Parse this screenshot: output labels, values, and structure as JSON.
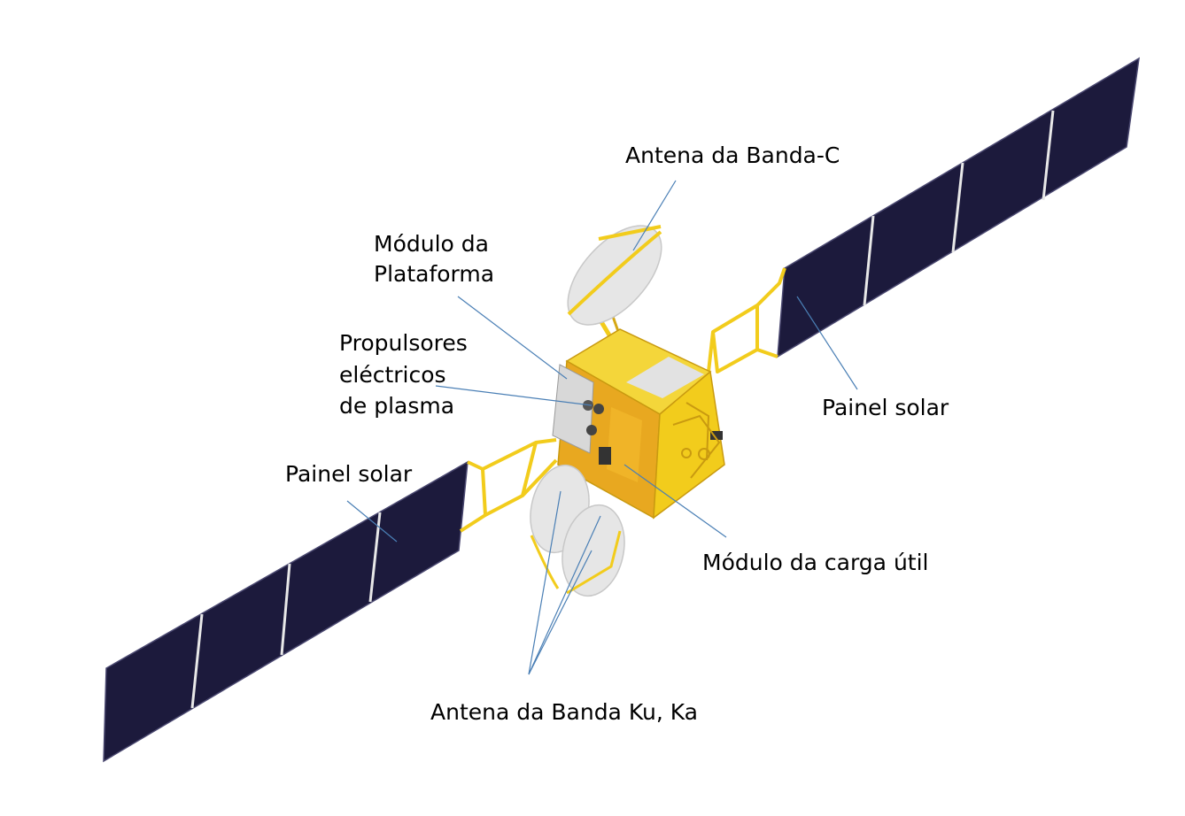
{
  "labels": {
    "antenna_c": "Antena da Banda-C",
    "platform_module": [
      "Módulo da",
      "Plataforma"
    ],
    "plasma_thrusters": [
      "Propulsores",
      "eléctricos",
      "de plasma"
    ],
    "solar_panel_right": "Painel solar",
    "solar_panel_left": "Painel solar",
    "payload_module": "Módulo da carga útil",
    "antenna_ku_ka": "Antena da Banda Ku, Ka"
  },
  "colors": {
    "panel": "#1c1a3c",
    "panel_edge": "#4a4870",
    "gold": "#f2cc1c",
    "gold_dark": "#c99a10",
    "gold_light": "#ffe968",
    "leader": "#4a7fb5",
    "dish": "#e6e6e6"
  }
}
